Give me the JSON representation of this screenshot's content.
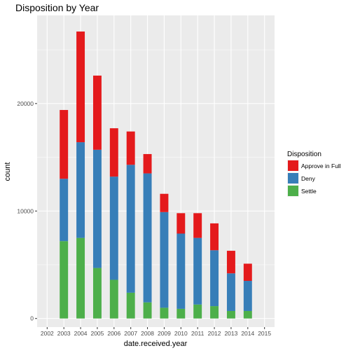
{
  "chart_data": {
    "type": "bar",
    "stacked": true,
    "title": "Disposition by Year",
    "xlabel": "date.received.year",
    "ylabel": "count",
    "categories": [
      "2002",
      "2003",
      "2004",
      "2005",
      "2006",
      "2007",
      "2008",
      "2009",
      "2010",
      "2011",
      "2012",
      "2013",
      "2014",
      "2015"
    ],
    "yticks": [
      0,
      10000,
      20000
    ],
    "ylim": [
      -800,
      28200
    ],
    "grid": true,
    "legend": {
      "title": "Disposition",
      "position": "right"
    },
    "series": [
      {
        "name": "Settle",
        "color": "#4DAF4A",
        "values": [
          0,
          7200,
          7500,
          4700,
          3600,
          2400,
          1500,
          1000,
          900,
          1300,
          1150,
          700,
          700,
          0
        ]
      },
      {
        "name": "Deny",
        "color": "#377EB8",
        "values": [
          0,
          5800,
          8900,
          11000,
          9600,
          11900,
          12000,
          8900,
          7000,
          6200,
          5200,
          3500,
          2800,
          0
        ]
      },
      {
        "name": "Approve in Full",
        "color": "#E41A1C",
        "values": [
          0,
          6400,
          10300,
          6900,
          4500,
          3100,
          1800,
          1700,
          1900,
          2300,
          2500,
          2100,
          1600,
          0
        ]
      }
    ]
  }
}
